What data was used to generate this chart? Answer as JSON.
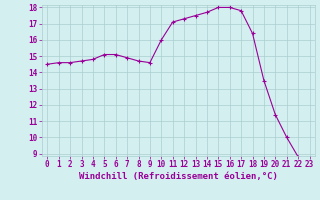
{
  "x": [
    0,
    1,
    2,
    3,
    4,
    5,
    6,
    7,
    8,
    9,
    10,
    11,
    12,
    13,
    14,
    15,
    16,
    17,
    18,
    19,
    20,
    21,
    22,
    23
  ],
  "y": [
    14.5,
    14.6,
    14.6,
    14.7,
    14.8,
    15.1,
    15.1,
    14.9,
    14.7,
    14.6,
    16.0,
    17.1,
    17.3,
    17.5,
    17.7,
    18.0,
    18.0,
    17.8,
    16.4,
    13.5,
    11.4,
    10.0,
    8.8,
    8.7
  ],
  "line_color": "#990099",
  "marker": "+",
  "marker_size": 3,
  "bg_color": "#d4efef",
  "grid_color": "#aacece",
  "xlabel": "Windchill (Refroidissement éolien,°C)",
  "xlabel_color": "#990099",
  "tick_color": "#990099",
  "ylim_min": 9,
  "ylim_max": 18,
  "xlim_min": 0,
  "xlim_max": 23,
  "yticks": [
    9,
    10,
    11,
    12,
    13,
    14,
    15,
    16,
    17,
    18
  ],
  "xticks": [
    0,
    1,
    2,
    3,
    4,
    5,
    6,
    7,
    8,
    9,
    10,
    11,
    12,
    13,
    14,
    15,
    16,
    17,
    18,
    19,
    20,
    21,
    22,
    23
  ],
  "xtick_labels": [
    "0",
    "1",
    "2",
    "3",
    "4",
    "5",
    "6",
    "7",
    "8",
    "9",
    "10",
    "11",
    "12",
    "13",
    "14",
    "15",
    "16",
    "17",
    "18",
    "19",
    "20",
    "21",
    "22",
    "23"
  ],
  "ytick_labels": [
    "9",
    "10",
    "11",
    "12",
    "13",
    "14",
    "15",
    "16",
    "17",
    "18"
  ],
  "tick_font_size": 5.5,
  "xlabel_font_size": 6.5
}
